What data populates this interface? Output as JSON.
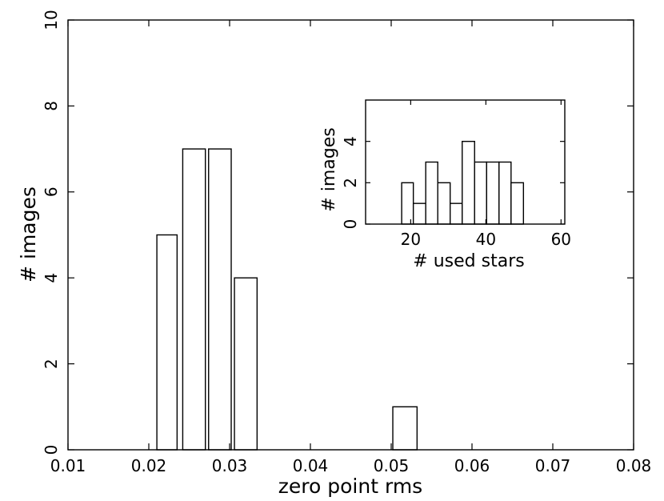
{
  "chart_data": [
    {
      "type": "bar",
      "xlabel": "zero point rms",
      "ylabel": "# images",
      "xlim": [
        0.01,
        0.08
      ],
      "ylim": [
        0,
        10
      ],
      "xticks": [
        "0.01",
        "0.02",
        "0.03",
        "0.04",
        "0.05",
        "0.06",
        "0.07",
        "0.08"
      ],
      "yticks": [
        "0",
        "2",
        "4",
        "6",
        "8",
        "10"
      ],
      "bins": [
        {
          "left": 0.021,
          "right": 0.0235,
          "value": 5
        },
        {
          "left": 0.0242,
          "right": 0.027,
          "value": 7
        },
        {
          "left": 0.0274,
          "right": 0.0302,
          "value": 7
        },
        {
          "left": 0.0306,
          "right": 0.0334,
          "value": 4
        },
        {
          "left": 0.0502,
          "right": 0.0532,
          "value": 1
        }
      ],
      "grid": false
    },
    {
      "type": "bar",
      "xlabel": "# used stars",
      "ylabel": "# images",
      "xlim": [
        8,
        61
      ],
      "ylim": [
        0,
        6
      ],
      "xticks": [
        "20",
        "40",
        "60"
      ],
      "yticks": [
        "0",
        "2",
        "4"
      ],
      "bins": [
        {
          "left": 17.6,
          "right": 20.7,
          "value": 2
        },
        {
          "left": 20.7,
          "right": 24.0,
          "value": 1
        },
        {
          "left": 24.0,
          "right": 27.2,
          "value": 3
        },
        {
          "left": 27.2,
          "right": 30.5,
          "value": 2
        },
        {
          "left": 30.5,
          "right": 33.7,
          "value": 1
        },
        {
          "left": 33.7,
          "right": 37.0,
          "value": 4
        },
        {
          "left": 37.0,
          "right": 40.2,
          "value": 3
        },
        {
          "left": 40.2,
          "right": 43.5,
          "value": 3
        },
        {
          "left": 43.5,
          "right": 46.7,
          "value": 3
        },
        {
          "left": 46.7,
          "right": 50.0,
          "value": 2
        }
      ],
      "grid": false,
      "placement": "inset top-right"
    }
  ]
}
